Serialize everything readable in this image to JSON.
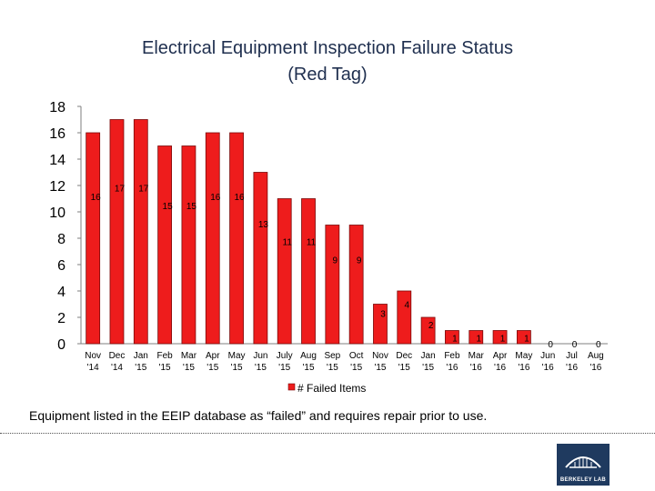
{
  "page": {
    "title_line1": "Electrical Equipment Inspection Failure Status",
    "title_line2": "(Red Tag)",
    "caption": "Equipment listed in the EEIP database as “failed” and requires repair prior to use.",
    "logo_text": "BERKELEY LAB"
  },
  "chart_data": {
    "type": "bar",
    "title": "Electrical Equipment Inspection Failure Status (Red Tag)",
    "categories": [
      [
        "Nov",
        "'14"
      ],
      [
        "Dec",
        "'14"
      ],
      [
        "Jan",
        "'15"
      ],
      [
        "Feb",
        "'15"
      ],
      [
        "Mar",
        "'15"
      ],
      [
        "Apr",
        "'15"
      ],
      [
        "May",
        "'15"
      ],
      [
        "Jun",
        "'15"
      ],
      [
        "July",
        "'15"
      ],
      [
        "Aug",
        "'15"
      ],
      [
        "Sep",
        "'15"
      ],
      [
        "Oct",
        "'15"
      ],
      [
        "Nov",
        "'15"
      ],
      [
        "Dec",
        "'15"
      ],
      [
        "Jan",
        "'15"
      ],
      [
        "Feb",
        "'16"
      ],
      [
        "Mar",
        "'16"
      ],
      [
        "Apr",
        "'16"
      ],
      [
        "May",
        "'16"
      ],
      [
        "Jun",
        "'16"
      ],
      [
        "Jul",
        "'16"
      ],
      [
        "Aug",
        "'16"
      ]
    ],
    "series": [
      {
        "name": "# Failed Items",
        "color": "#ee1c1c",
        "values": [
          16,
          17,
          17,
          15,
          15,
          16,
          16,
          13,
          11,
          11,
          9,
          9,
          3,
          4,
          2,
          1,
          1,
          1,
          1,
          0,
          0,
          0
        ]
      }
    ],
    "yticks": [
      0,
      2,
      4,
      6,
      8,
      10,
      12,
      14,
      16,
      18
    ],
    "ylim": [
      0,
      18
    ],
    "grid": false,
    "legend": "bottom",
    "data_labels": true
  }
}
